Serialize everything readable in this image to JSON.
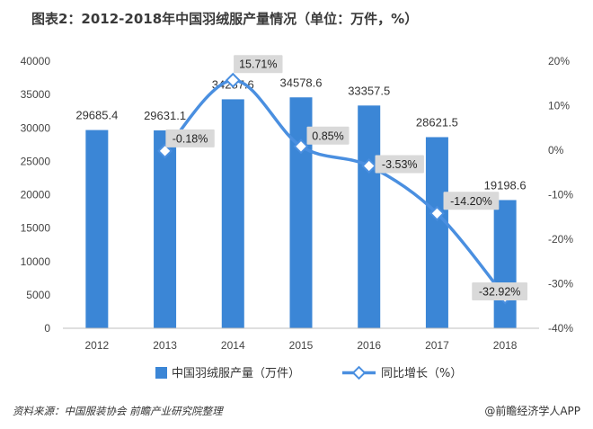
{
  "chart_data": {
    "type": "bar",
    "title": "图表2：2012-2018年中国羽绒服产量情况（单位：万件，%）",
    "categories": [
      "2012",
      "2013",
      "2014",
      "2015",
      "2016",
      "2017",
      "2018"
    ],
    "series": [
      {
        "name": "中国羽绒服产量（万件）",
        "type": "bar",
        "axis": "left",
        "values": [
          29685.4,
          29631.1,
          34287.6,
          34578.6,
          33357.5,
          28621.5,
          19198.6
        ],
        "labels": [
          "29685.4",
          "29631.1",
          "34287.6",
          "34578.6",
          "33357.5",
          "28621.5",
          "19198.6"
        ],
        "color": "#3b86d6"
      },
      {
        "name": "同比增长（%）",
        "type": "line",
        "axis": "right",
        "values": [
          null,
          -0.18,
          15.71,
          0.85,
          -3.53,
          -14.2,
          -32.92
        ],
        "labels": [
          "",
          "-0.18%",
          "15.71%",
          "0.85%",
          "-3.53%",
          "-14.20%",
          "-32.92%"
        ],
        "color": "#4a8fe0"
      }
    ],
    "left_axis": {
      "ylim": [
        0,
        40000
      ],
      "ticks": [
        "0",
        "5000",
        "10000",
        "15000",
        "20000",
        "25000",
        "30000",
        "35000",
        "40000"
      ]
    },
    "right_axis": {
      "ylim": [
        -40,
        20
      ],
      "ticks": [
        "-40%",
        "-30%",
        "-20%",
        "-10%",
        "0%",
        "10%",
        "20%"
      ]
    },
    "grid": false,
    "legend_position": "bottom"
  },
  "footer": {
    "source": "资料来源：中国服装协会 前瞻产业研究院整理",
    "brand": "@前瞻经济学人APP"
  }
}
